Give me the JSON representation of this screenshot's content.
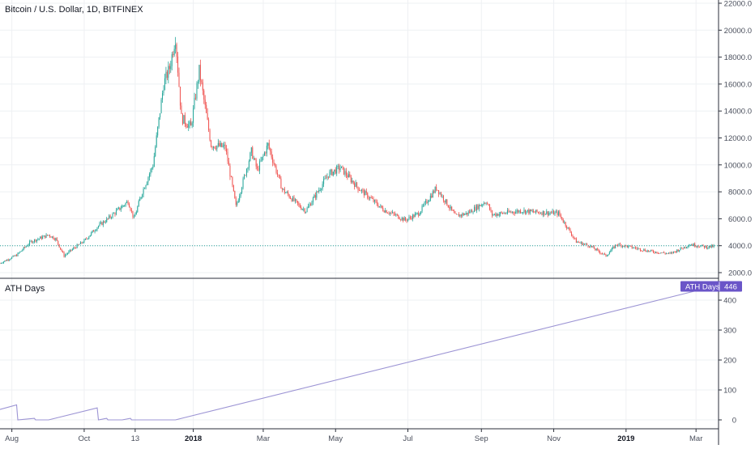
{
  "header": {
    "price_title": "Bitcoin / U.S. Dollar, 1D, BITFINEX",
    "indicator_title": "ATH Days"
  },
  "colors": {
    "up": "#26a69a",
    "down": "#ef5350",
    "ath_line": "#9c94d4",
    "badge": "#6a55c8",
    "price_line": "#26a69a",
    "grid": "#eef0f3"
  },
  "chart_data": [
    {
      "type": "candlestick",
      "title": "Bitcoin / U.S. Dollar, 1D, BITFINEX",
      "interval": "1D",
      "y_ticks": [
        "2000.0",
        "4000.0",
        "6000.0",
        "8000.0",
        "10000.0",
        "12000.0",
        "14000.0",
        "16000.0",
        "18000.0",
        "20000.0",
        "22000.0"
      ],
      "ylim": [
        1100,
        22000
      ],
      "current_price": 4000,
      "x_range": [
        "2017-07-22",
        "2019-03-20"
      ],
      "price_path": [
        [
          "2017-07-22",
          2700
        ],
        [
          "2017-08-05",
          3300
        ],
        [
          "2017-08-17",
          4300
        ],
        [
          "2017-09-01",
          4800
        ],
        [
          "2017-09-07",
          4500
        ],
        [
          "2017-09-14",
          3250
        ],
        [
          "2017-09-22",
          3800
        ],
        [
          "2017-10-01",
          4350
        ],
        [
          "2017-10-12",
          5400
        ],
        [
          "2017-10-21",
          6000
        ],
        [
          "2017-11-07",
          7300
        ],
        [
          "2017-11-12",
          6000
        ],
        [
          "2017-11-19",
          8000
        ],
        [
          "2017-11-28",
          10000
        ],
        [
          "2017-12-07",
          16000
        ],
        [
          "2017-12-12",
          17200
        ],
        [
          "2017-12-17",
          19500
        ],
        [
          "2017-12-22",
          13500
        ],
        [
          "2017-12-30",
          12800
        ],
        [
          "2018-01-06",
          17000
        ],
        [
          "2018-01-16",
          11500
        ],
        [
          "2018-01-28",
          11300
        ],
        [
          "2018-02-06",
          6900
        ],
        [
          "2018-02-19",
          11000
        ],
        [
          "2018-02-24",
          9600
        ],
        [
          "2018-03-05",
          11500
        ],
        [
          "2018-03-17",
          8200
        ],
        [
          "2018-04-01",
          6900
        ],
        [
          "2018-04-06",
          6600
        ],
        [
          "2018-04-25",
          9300
        ],
        [
          "2018-05-05",
          9800
        ],
        [
          "2018-05-20",
          8300
        ],
        [
          "2018-06-10",
          6700
        ],
        [
          "2018-06-29",
          5900
        ],
        [
          "2018-07-10",
          6400
        ],
        [
          "2018-07-25",
          8300
        ],
        [
          "2018-08-10",
          6200
        ],
        [
          "2018-08-20",
          6400
        ],
        [
          "2018-09-05",
          7300
        ],
        [
          "2018-09-10",
          6300
        ],
        [
          "2018-10-05",
          6600
        ],
        [
          "2018-10-15",
          6500
        ],
        [
          "2018-11-05",
          6400
        ],
        [
          "2018-11-20",
          4300
        ],
        [
          "2018-12-01",
          4000
        ],
        [
          "2018-12-15",
          3250
        ],
        [
          "2018-12-24",
          4100
        ],
        [
          "2019-01-05",
          3900
        ],
        [
          "2019-01-20",
          3600
        ],
        [
          "2019-02-07",
          3400
        ],
        [
          "2019-02-24",
          4100
        ],
        [
          "2019-03-10",
          3900
        ],
        [
          "2019-03-16",
          3950
        ]
      ]
    },
    {
      "type": "line",
      "title": "ATH Days",
      "series": [
        {
          "name": "ATH Days",
          "last_value": "446"
        }
      ],
      "y_ticks": [
        "0",
        "100",
        "200",
        "300",
        "400"
      ],
      "ylim": [
        -20,
        465
      ],
      "points": [
        [
          "2017-07-22",
          35
        ],
        [
          "2017-08-05",
          50
        ],
        [
          "2017-08-06",
          0
        ],
        [
          "2017-08-20",
          5
        ],
        [
          "2017-08-21",
          0
        ],
        [
          "2017-09-01",
          0
        ],
        [
          "2017-10-12",
          40
        ],
        [
          "2017-10-13",
          0
        ],
        [
          "2017-10-20",
          5
        ],
        [
          "2017-10-21",
          0
        ],
        [
          "2017-11-02",
          0
        ],
        [
          "2017-11-09",
          5
        ],
        [
          "2017-11-10",
          0
        ],
        [
          "2017-12-17",
          0
        ],
        [
          "2019-03-16",
          446
        ]
      ]
    }
  ],
  "x_axis": {
    "ticks": [
      {
        "date": "2017-08-01",
        "label": "Aug",
        "bold": false
      },
      {
        "date": "2017-10-01",
        "label": "Oct",
        "bold": false
      },
      {
        "date": "2017-11-13",
        "label": "13",
        "bold": false
      },
      {
        "date": "2018-01-01",
        "label": "2018",
        "bold": true
      },
      {
        "date": "2018-03-01",
        "label": "Mar",
        "bold": false
      },
      {
        "date": "2018-05-01",
        "label": "May",
        "bold": false
      },
      {
        "date": "2018-07-01",
        "label": "Jul",
        "bold": false
      },
      {
        "date": "2018-09-01",
        "label": "Sep",
        "bold": false
      },
      {
        "date": "2018-11-01",
        "label": "Nov",
        "bold": false
      },
      {
        "date": "2019-01-01",
        "label": "2019",
        "bold": true
      },
      {
        "date": "2019-03-01",
        "label": "Mar",
        "bold": false
      }
    ]
  },
  "badge": {
    "label": "ATH Days",
    "value": "446"
  }
}
